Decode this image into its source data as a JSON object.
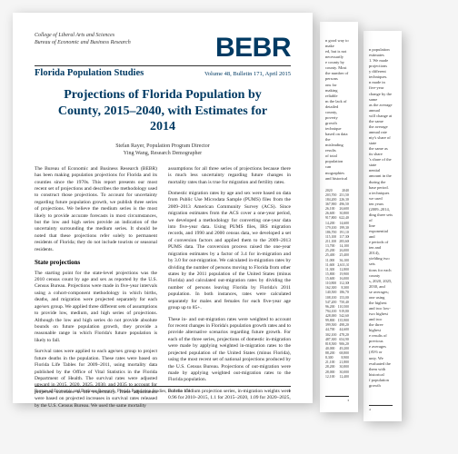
{
  "colors": {
    "brand": "#003a63",
    "text": "#333",
    "rule": "#333",
    "bg": "#fff"
  },
  "masthead": {
    "college": "College of Liberal Arts and Sciences",
    "bureau": "Bureau of Economic and Business Research",
    "logo": "BEBR",
    "series": "Florida Population Studies",
    "issue": "Volume 48, Bulletin 171, April 2015"
  },
  "title": "Projections of Florida Population by County, 2015–2040, with Estimates for 2014",
  "authors": [
    {
      "name": "Stefan Rayer",
      "role": "Population Program Director"
    },
    {
      "name": "Ying Wang",
      "role": "Research Demographer"
    }
  ],
  "body": {
    "p1": "The Bureau of Economic and Business Research (BEBR) has been making population projections for Florida and its counties since the 1970s. This report presents our most recent set of projections and describes the methodology used to construct those projections. To account for uncertainty regarding future population growth, we publish three series of projections. We believe the medium series is the most likely to provide accurate forecasts in most circumstances, but the low and high series provide an indication of the uncertainty surrounding the medium series. It should be noted that these projections refer solely to permanent residents of Florida; they do not include tourists or seasonal residents.",
    "h1": "State projections",
    "p2": "The starting point for the state-level projections was the 2010 census count by age and sex as reported by the U.S. Census Bureau. Projections were made in five-year intervals using a cohort-component methodology in which births, deaths, and migration were projected separately for each age/sex group. We applied three different sets of assumptions to provide low, medium, and high series of projections. Although the low and high series do not provide absolute bounds on future population growth, they provide a reasonable range in which Florida's future population is likely to fall.",
    "p3": "Survival rates were applied to each age/sex group to project future deaths in the population. These rates were based on Florida Life Tables for 2009–2011, using mortality data published by the Office of Vital Statistics in the Florida Department of Health. The survival rates were adjusted upward in 2015, 2020, 2025, 2030, and 2035 to account for projected increases in life expectancy. These adjustments were based on projected increases in survival rates released by the U.S. Census Bureau. We used the same mortality",
    "p4": "assumptions for all three series of projections because there is much less uncertainty regarding future changes in mortality rates than is true for migration and fertility rates.",
    "p5": "Domestic migration rates by age and sex were based on data from Public Use Microdata Sample (PUMS) files from the 2009–2013 American Community Survey (ACS). Since migration estimates from the ACS cover a one-year period, we developed a methodology for converting one-year data into five-year data. Using PUMS files, IRS migration records, and 1990 and 2000 census data, we developed a set of conversion factors and applied them to the 2009–2013 PUMS data. The conversion process raised the one-year migration estimates by a factor of 3.4 for in-migration and by 3.0 for out-migration. We calculated in-migration rates by dividing the number of persons moving to Florida from other states by the 2011 population of the United States (minus Florida) and calculated out-migration rates by dividing the number of persons leaving Florida by Florida's 2011 population. In both instances, rates were calculated separately for males and females for each five-year age group up to 85+.",
    "p6": "These in- and out-migration rates were weighted to account for recent changes in Florida's population growth rates and to provide alternative scenarios regarding future growth. For each of the three series, projections of domestic in-migration were made by applying weighted in-migration rates to the projected population of the United States (minus Florida), using the most recent set of national projections produced by the U.S. Census Bureau. Projections of out-migration were made by applying weighted out-migration rates to the Florida population.",
    "p7": "For the medium projection series, in-migration weights were 0.96 for 2010–2015, 1.1 for 2015–2020, 1.09 for 2020–2025,"
  },
  "footer": {
    "left": "Bureau of Economic and Business Research, Florida Population Studies, Bulletin 171",
    "right_p1": "1",
    "right_p3": "3",
    "right_p4": "4"
  },
  "peekMid": {
    "frags": [
      "n good way to make",
      "ed, but is not necessarily",
      "e county by county. Most",
      "the number of persons",
      "ons for making reliable",
      "m the lack of detailed",
      "county, poverty growth",
      "technique based on data",
      "the misleading results",
      "of total population can",
      "mographies and historical"
    ],
    "nums": [
      [
        "2020",
        "2040"
      ],
      [
        "203,700",
        "251,500"
      ],
      [
        "184,200",
        "226,300"
      ],
      [
        "367,900",
        "496,500"
      ],
      [
        "26,100",
        "26,600"
      ],
      [
        "26,600",
        "30,800"
      ],
      [
        "917,800",
        "622,400"
      ],
      [
        "14,200",
        "14,600"
      ],
      [
        "179,100",
        "199,300"
      ],
      [
        "186,700",
        "191,100"
      ],
      [
        "115,100",
        "117,300"
      ],
      [
        "211,100",
        "283,600"
      ],
      [
        "13,700",
        "14,100"
      ],
      [
        "25,200",
        "26,000"
      ],
      [
        "25,400",
        "25,400"
      ],
      [
        "11,000",
        "36,100"
      ],
      [
        "11,600",
        "2,631,300"
      ],
      [
        "11,300",
        "12,800"
      ],
      [
        "15,800",
        "19,900"
      ],
      [
        "15,600",
        "16,000"
      ],
      [
        "110,800",
        "112,300"
      ],
      [
        "162,300",
        "8,300"
      ],
      [
        "140,500",
        "186,700"
      ],
      [
        "108,100",
        "153,000"
      ],
      [
        "547,200",
        "750,400"
      ],
      [
        "96,200",
        "110,500"
      ],
      [
        "794,100",
        "919,800"
      ],
      [
        "428,000",
        "542,600"
      ],
      [
        "99,800",
        "135,900"
      ],
      [
        "399,500",
        "498,200"
      ],
      [
        "44,700",
        "44,600"
      ],
      [
        "302,100",
        "478,200"
      ],
      [
        "487,300",
        "654,900"
      ],
      [
        "818,500",
        "906,200"
      ],
      [
        "40,000",
        "49,200"
      ],
      [
        "88,200",
        "68,800"
      ],
      [
        "8,300",
        "8,900"
      ],
      [
        "21,100",
        "21,800"
      ],
      [
        "28,200",
        "30,800"
      ],
      [
        "28,000",
        "30,000"
      ],
      [
        "12,100",
        "12,400"
      ]
    ]
  },
  "peekBack": {
    "frags": [
      "n population estimates",
      "1. We made projections",
      "y different techniques.",
      "n made in five-year",
      "change by the same",
      "as the average annual",
      "will change at the same",
      "the average annual rate",
      "nty's share of state",
      "the same as its share",
      "'s share of the state",
      "nential amount in the",
      "during the base period.",
      "a techniques we used",
      "ten years (2009–2014,",
      "ding three sets of",
      "line exponential and",
      "e periods of ten and",
      "2014), yielding two sets",
      "tions for each county",
      "s, 2020, 2025, 2030, and",
      "se averages; one using",
      "the highest and two low-",
      "two highest and two",
      "the three highest",
      "e results of previous",
      "e averages (AV6 or",
      "unty. We evaluated the",
      "them with historical",
      "f population growth"
    ]
  }
}
